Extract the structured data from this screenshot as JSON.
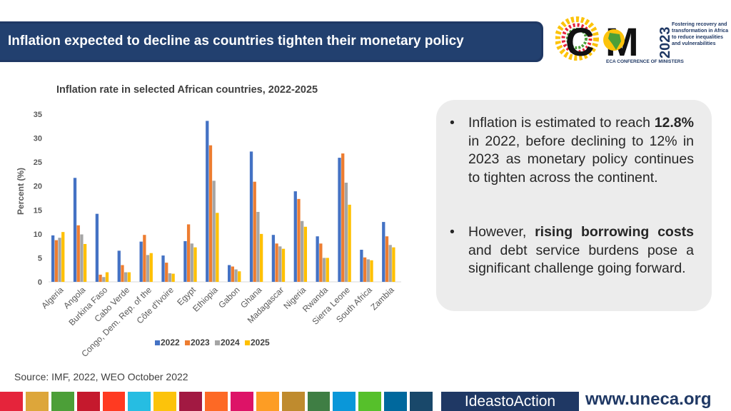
{
  "header": {
    "title": "Inflation expected to decline as countries tighten their monetary policy"
  },
  "logo": {
    "letters": "C M",
    "year": "2023",
    "subtitle": "ECA CONFERENCE OF MINISTERS",
    "tagline": "Fostering recovery and transformation in Africa to reduce inequalities and vulnerabilities"
  },
  "chart_data": {
    "type": "bar",
    "title": "Inflation rate in selected African countries, 2022-2025",
    "ylabel": "Percent (%)",
    "xlabel": "",
    "ylim": [
      0,
      35
    ],
    "yticks": [
      0,
      5,
      10,
      15,
      20,
      25,
      30,
      35
    ],
    "legend_position": "bottom",
    "categories": [
      "Algeria",
      "Angola",
      "Burkina Faso",
      "Cabo Verde",
      "Congo, Dem. Rep. of the",
      "Côte d'Ivoire",
      "Egypt",
      "Ethiopia",
      "Gabon",
      "Ghana",
      "Madagascar",
      "Nigeria",
      "Rwanda",
      "Sierra Leone",
      "South Africa",
      "Zambia"
    ],
    "series": [
      {
        "name": "2022",
        "color": "#4472c4",
        "values": [
          9.7,
          21.7,
          14.2,
          6.5,
          8.4,
          5.5,
          8.5,
          33.6,
          3.5,
          27.2,
          9.8,
          18.9,
          9.5,
          25.9,
          6.7,
          12.5
        ]
      },
      {
        "name": "2023",
        "color": "#ed7d31",
        "values": [
          8.7,
          11.8,
          1.5,
          3.5,
          9.8,
          4.0,
          12.0,
          28.5,
          3.2,
          20.9,
          8.0,
          17.3,
          8.0,
          26.8,
          5.1,
          9.5
        ]
      },
      {
        "name": "2024",
        "color": "#a5a5a5",
        "values": [
          9.2,
          9.9,
          1.0,
          2.0,
          5.6,
          1.8,
          8.0,
          21.1,
          2.6,
          14.6,
          7.4,
          12.7,
          5.0,
          20.7,
          4.7,
          7.7
        ]
      },
      {
        "name": "2025",
        "color": "#ffc000",
        "values": [
          10.4,
          7.9,
          2.0,
          2.0,
          6.0,
          1.7,
          7.2,
          14.4,
          2.2,
          10.0,
          6.9,
          11.5,
          5.0,
          16.1,
          4.5,
          7.2
        ]
      }
    ]
  },
  "bullets": [
    {
      "parts": [
        "Inflation is estimated to reach ",
        "12.8%",
        " in 2022, before declining to 12% in 2023 as monetary policy continues to tighten across the continent."
      ]
    },
    {
      "parts": [
        "However, ",
        "rising borrowing costs",
        " and debt service burdens pose a significant challenge going forward."
      ]
    }
  ],
  "source": "Source: IMF, 2022, WEO October 2022",
  "footer": {
    "brand": "IdeastoAction",
    "url": "www.uneca.org",
    "stripe_colors": [
      "#e5243b",
      "#dda63a",
      "#4c9f38",
      "#c5192d",
      "#ff3a21",
      "#26bde2",
      "#fcc30b",
      "#a21942",
      "#fd6925",
      "#dd1367",
      "#fd9d24",
      "#bf8b2e",
      "#3f7e44",
      "#0a97d9",
      "#56c02b",
      "#00689d",
      "#19486a"
    ]
  }
}
